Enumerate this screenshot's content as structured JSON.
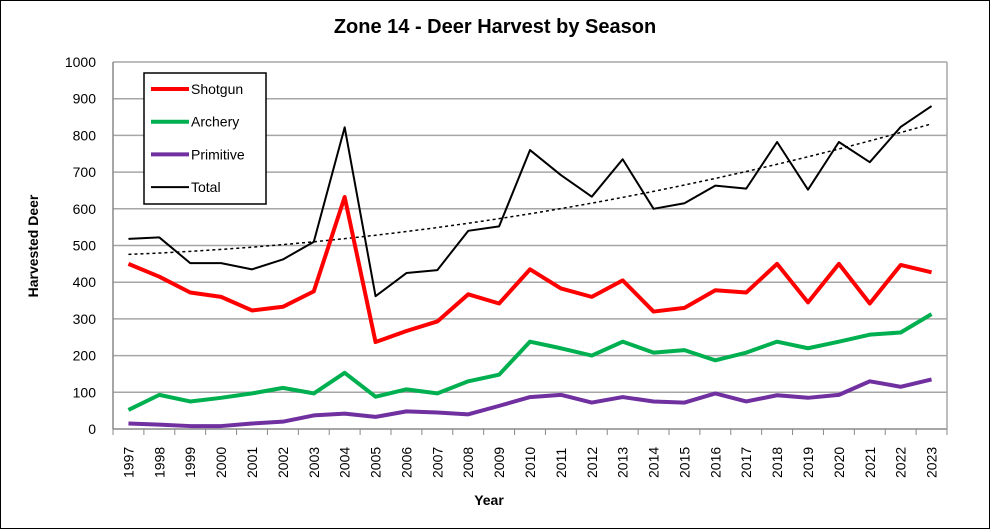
{
  "chart_data": {
    "type": "line",
    "title": "Zone 14 - Deer Harvest by Season",
    "xlabel": "Year",
    "ylabel": "Harvested Deer",
    "ylim": [
      0,
      1000
    ],
    "yticks": [
      0,
      100,
      200,
      300,
      400,
      500,
      600,
      700,
      800,
      900,
      1000
    ],
    "grid": true,
    "legend": "top-left",
    "categories": [
      "1997",
      "1998",
      "1999",
      "2000",
      "2001",
      "2002",
      "2003",
      "2004",
      "2005",
      "2006",
      "2007",
      "2008",
      "2009",
      "2010",
      "2011",
      "2012",
      "2013",
      "2014",
      "2015",
      "2016",
      "2017",
      "2018",
      "2019",
      "2020",
      "2021",
      "2022",
      "2023"
    ],
    "series": [
      {
        "name": "Shotgun",
        "color": "#ff0000",
        "values": [
          450,
          415,
          372,
          360,
          323,
          333,
          375,
          632,
          237,
          267,
          293,
          367,
          342,
          435,
          383,
          360,
          405,
          320,
          330,
          378,
          372,
          450,
          345,
          450,
          342,
          447,
          427
        ]
      },
      {
        "name": "Archery",
        "color": "#00b050",
        "values": [
          52,
          93,
          75,
          85,
          97,
          112,
          97,
          153,
          88,
          108,
          97,
          130,
          148,
          238,
          220,
          200,
          238,
          208,
          215,
          187,
          208,
          238,
          220,
          238,
          257,
          263,
          313
        ]
      },
      {
        "name": "Primitive",
        "color": "#7030a0",
        "values": [
          15,
          12,
          8,
          8,
          15,
          20,
          37,
          42,
          33,
          48,
          45,
          40,
          63,
          87,
          93,
          72,
          87,
          75,
          72,
          97,
          75,
          92,
          85,
          93,
          130,
          115,
          135
        ]
      },
      {
        "name": "Total",
        "color": "#000000",
        "values": [
          518,
          522,
          452,
          452,
          435,
          462,
          510,
          822,
          362,
          425,
          433,
          540,
          552,
          760,
          692,
          633,
          735,
          600,
          615,
          663,
          655,
          782,
          652,
          782,
          727,
          823,
          880
        ]
      }
    ],
    "trendline": {
      "series": "Total",
      "type": "polynomial",
      "style": "dotted"
    }
  }
}
